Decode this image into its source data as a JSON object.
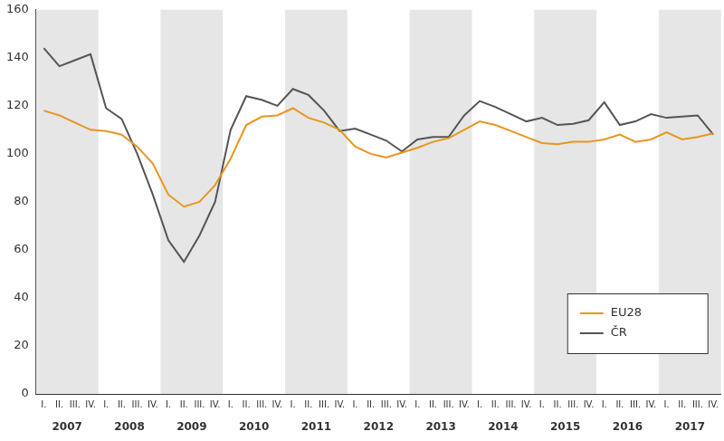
{
  "chart_data": {
    "type": "line",
    "categories": [
      "I.",
      "II.",
      "III.",
      "IV.",
      "I.",
      "II.",
      "III.",
      "IV.",
      "I.",
      "II.",
      "III.",
      "IV.",
      "I.",
      "II.",
      "III.",
      "IV.",
      "I.",
      "II.",
      "III.",
      "IV.",
      "I.",
      "II.",
      "III.",
      "IV.",
      "I.",
      "II.",
      "III.",
      "IV.",
      "I.",
      "II.",
      "III.",
      "IV.",
      "I.",
      "II.",
      "III.",
      "IV.",
      "I.",
      "II.",
      "III.",
      "IV.",
      "I.",
      "II.",
      "III.",
      "IV."
    ],
    "years": [
      "2007",
      "2008",
      "2009",
      "2010",
      "2011",
      "2012",
      "2013",
      "2014",
      "2015",
      "2016",
      "2017"
    ],
    "series": [
      {
        "name": "EU28",
        "color": "#e8961e",
        "values": [
          118,
          116,
          113,
          110,
          109.5,
          108,
          103,
          96,
          83,
          78,
          80,
          87,
          98,
          112,
          115.5,
          116,
          119,
          115,
          113,
          110,
          103,
          100,
          98.5,
          100.5,
          102.5,
          105,
          106.5,
          110,
          113.5,
          112,
          109.5,
          107,
          104.5,
          104,
          105,
          105,
          106,
          108,
          105,
          106,
          109,
          106,
          107,
          108.5
        ]
      },
      {
        "name": "ČR",
        "color": "#555555",
        "values": [
          144,
          136.5,
          139,
          141.5,
          119,
          114.5,
          100,
          83,
          64,
          55,
          66,
          80,
          110,
          124,
          122.5,
          120,
          127,
          124.5,
          118,
          109.5,
          110.5,
          108,
          105.5,
          101,
          106,
          107,
          107,
          116,
          122,
          119.5,
          116.5,
          113.5,
          115,
          112,
          112.5,
          114,
          121.5,
          112,
          113.5,
          116.5,
          115,
          115.5,
          116,
          108
        ]
      }
    ],
    "ylim": [
      0,
      160
    ],
    "yticks": [
      0,
      20,
      40,
      60,
      80,
      100,
      120,
      140,
      160
    ],
    "grid": false,
    "legend": "lower right"
  }
}
